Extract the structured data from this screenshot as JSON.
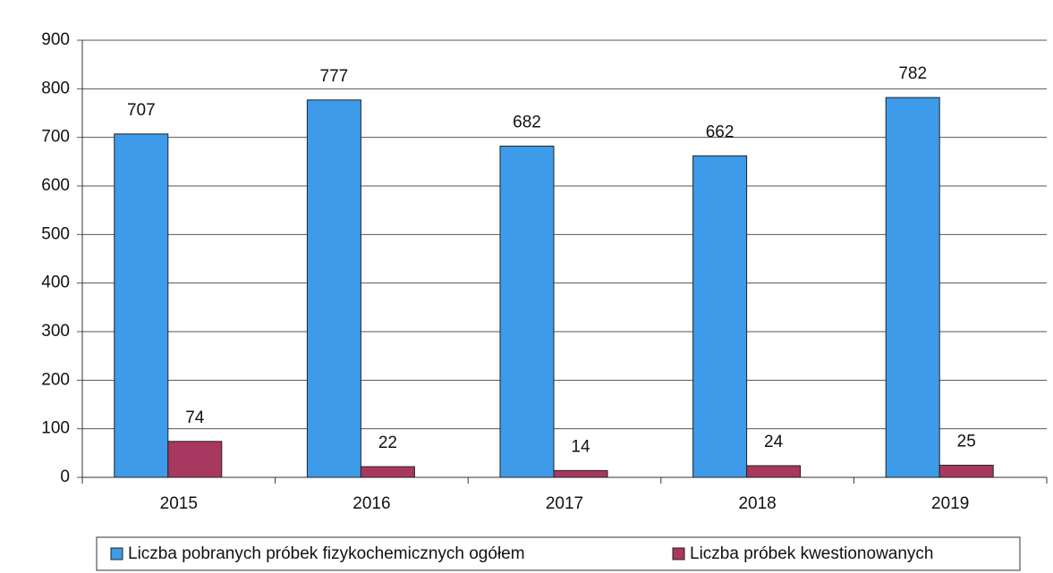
{
  "chart_data": {
    "type": "bar",
    "categories": [
      "2015",
      "2016",
      "2017",
      "2018",
      "2019"
    ],
    "series": [
      {
        "name": "Liczba pobranych próbek fizykochemicznych ogółem",
        "color": "#3d9be9",
        "values": [
          707,
          777,
          682,
          662,
          782
        ]
      },
      {
        "name": "Liczba próbek kwestionowanych",
        "color": "#a8385f",
        "values": [
          74,
          22,
          14,
          24,
          25
        ]
      }
    ],
    "ylim": [
      0,
      900
    ],
    "yticks": [
      0,
      100,
      200,
      300,
      400,
      500,
      600,
      700,
      800,
      900
    ],
    "grid": true,
    "legend": "bottom"
  }
}
